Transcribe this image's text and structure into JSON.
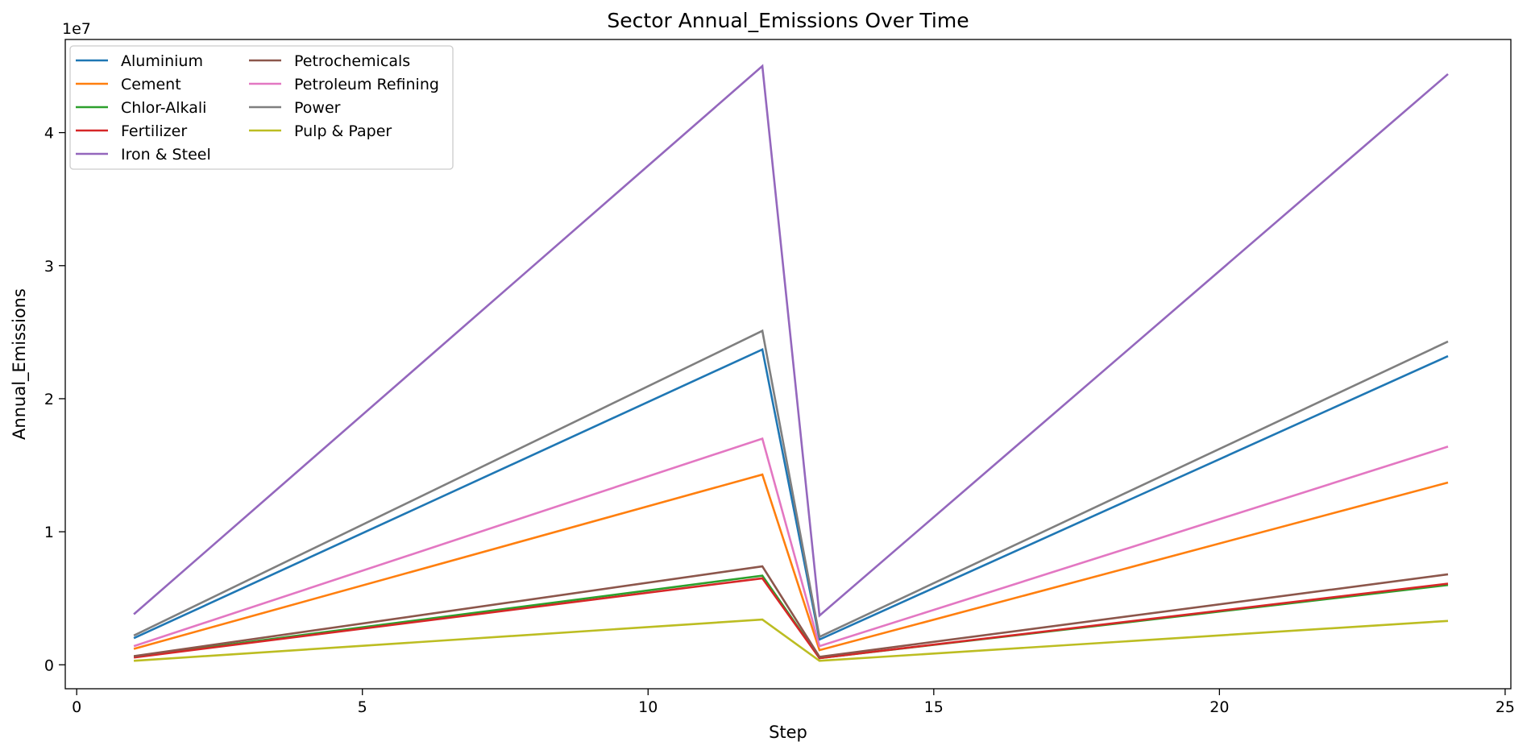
{
  "chart_data": {
    "type": "line",
    "title": "Sector Annual_Emissions Over Time",
    "xlabel": "Step",
    "ylabel": "Annual_Emissions",
    "y_multiplier_label": "1e7",
    "xlim": [
      -0.2,
      25.1
    ],
    "ylim": [
      -1800000,
      47000000
    ],
    "x_ticks": [
      0,
      5,
      10,
      15,
      20,
      25
    ],
    "y_ticks": [
      0,
      10000000,
      20000000,
      30000000,
      40000000
    ],
    "y_tick_labels": [
      "0",
      "1",
      "2",
      "3",
      "4"
    ],
    "grid": false,
    "legend_position": "upper-left",
    "legend_columns": 2,
    "x": [
      1,
      12,
      13,
      24
    ],
    "series": [
      {
        "name": "Aluminium",
        "color": "#1f77b4",
        "values": [
          2000000,
          23700000,
          1900000,
          23200000
        ]
      },
      {
        "name": "Cement",
        "color": "#ff7f0e",
        "values": [
          1200000,
          14300000,
          1100000,
          13700000
        ]
      },
      {
        "name": "Chlor-Alkali",
        "color": "#2ca02c",
        "values": [
          600000,
          6700000,
          500000,
          6000000
        ]
      },
      {
        "name": "Fertilizer",
        "color": "#d62728",
        "values": [
          550000,
          6500000,
          500000,
          6100000
        ]
      },
      {
        "name": "Iron & Steel",
        "color": "#9467bd",
        "values": [
          3800000,
          45000000,
          3700000,
          44400000
        ]
      },
      {
        "name": "Petrochemicals",
        "color": "#8c564b",
        "values": [
          650000,
          7400000,
          600000,
          6800000
        ]
      },
      {
        "name": "Petroleum Refining",
        "color": "#e377c2",
        "values": [
          1400000,
          17000000,
          1400000,
          16400000
        ]
      },
      {
        "name": "Power",
        "color": "#7f7f7f",
        "values": [
          2200000,
          25100000,
          2100000,
          24300000
        ]
      },
      {
        "name": "Pulp & Paper",
        "color": "#bcbd22",
        "values": [
          300000,
          3400000,
          300000,
          3300000
        ]
      }
    ]
  }
}
